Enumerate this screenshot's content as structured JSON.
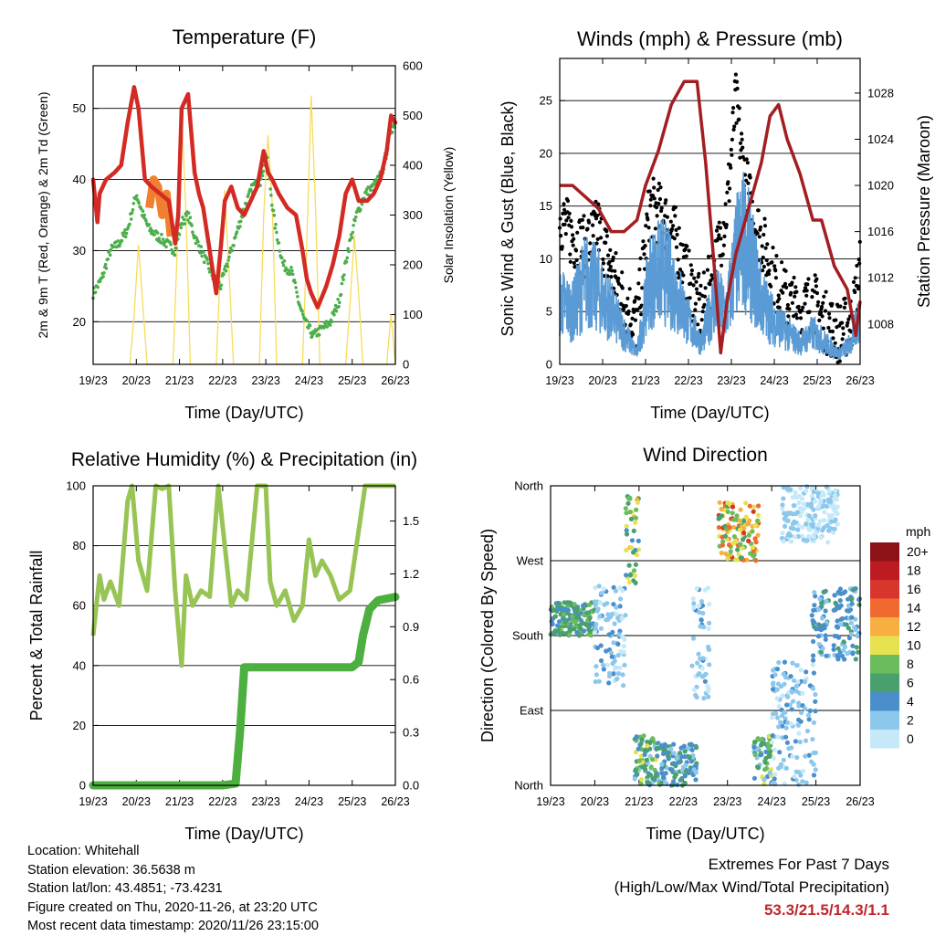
{
  "time_ticks": [
    "19/23",
    "20/23",
    "21/23",
    "22/23",
    "23/23",
    "24/23",
    "25/23",
    "26/23"
  ],
  "wind_speed_colors": [
    "#c6e9f9",
    "#8cc7ec",
    "#4a8fcc",
    "#49a06e",
    "#6bbd5c",
    "#e6e24f",
    "#f8af42",
    "#f06a30",
    "#d8352c",
    "#bd1b22",
    "#8c1217"
  ],
  "chart_data": [
    {
      "type": "line",
      "title": "Temperature (F)",
      "xlabel": "Time (Day/UTC)",
      "ylabel": "2m & 9m T (Red, Orange) & 2m Td (Green)",
      "y2label": "Solar Insolation (Yellow)",
      "x_domain_days": [
        0,
        7
      ],
      "ylim": [
        14,
        56
      ],
      "y_ticks": [
        20,
        30,
        40,
        50
      ],
      "y2lim": [
        0,
        600
      ],
      "y2_ticks": [
        0,
        100,
        200,
        300,
        400,
        500,
        600
      ],
      "grid": true,
      "series": [
        {
          "color": "#d42a24",
          "x": [
            0,
            0.1,
            0.15,
            0.3,
            0.5,
            0.65,
            0.8,
            0.95,
            1.05,
            1.2,
            1.35,
            1.55,
            1.75,
            1.9,
            1.97,
            2.05,
            2.2,
            2.35,
            2.45,
            2.55,
            2.65,
            2.85,
            2.95,
            3.05,
            3.2,
            3.35,
            3.5,
            3.65,
            3.8,
            3.95,
            4.05,
            4.15,
            4.3,
            4.5,
            4.7,
            4.85,
            4.95,
            5.05,
            5.2,
            5.4,
            5.55,
            5.7,
            5.85,
            6,
            6.15,
            6.35,
            6.5,
            6.65,
            6.8,
            6.9,
            7
          ],
          "y": [
            40,
            34,
            38,
            40,
            41,
            42,
            48,
            53,
            50,
            40,
            39,
            38,
            37,
            31,
            35,
            50,
            52,
            41,
            38,
            36,
            32,
            24,
            30,
            37,
            39,
            36,
            35,
            37,
            39,
            44,
            41,
            40,
            38,
            36,
            35,
            30,
            26,
            24,
            22,
            25,
            28,
            32,
            38,
            40,
            37,
            37,
            38,
            40,
            44,
            49,
            48
          ]
        },
        {
          "color": "#f08030",
          "x": [
            1.3,
            1.4,
            1.5,
            1.6,
            1.7,
            1.8
          ],
          "y": [
            36,
            40,
            39,
            35,
            38,
            32
          ]
        },
        {
          "color": "#4cae4c",
          "x": [
            0,
            0.2,
            0.4,
            0.6,
            0.8,
            1.0,
            1.15,
            1.3,
            1.5,
            1.7,
            1.9,
            2.05,
            2.2,
            2.35,
            2.5,
            2.65,
            2.8,
            2.95,
            3.1,
            3.3,
            3.5,
            3.7,
            3.9,
            4.0,
            4.2,
            4.4,
            4.6,
            4.75,
            4.9,
            5.1,
            5.3,
            5.5,
            5.7,
            5.9,
            6.1,
            6.3,
            6.5,
            6.7,
            6.9,
            7
          ],
          "y": [
            24,
            26,
            30,
            31,
            33,
            38,
            35,
            33,
            32,
            31,
            30,
            34,
            35,
            32,
            30,
            28,
            26,
            25,
            28,
            32,
            36,
            39,
            40,
            44,
            34,
            28,
            27,
            23,
            20,
            18,
            19,
            20,
            23,
            30,
            35,
            38,
            39,
            41,
            47,
            48
          ]
        },
        {
          "color": "#f7dc59",
          "axis": "y2",
          "x": [
            0.85,
            0.95,
            1.05,
            1.15,
            1.25,
            1.85,
            1.95,
            2.05,
            2.15,
            2.25,
            2.85,
            2.95,
            3.05,
            3.15,
            3.25,
            3.85,
            3.95,
            4.05,
            4.15,
            4.25,
            4.85,
            4.95,
            5.05,
            5.15,
            5.25,
            5.85,
            5.95,
            6.05,
            6.15,
            6.25,
            6.8,
            6.9,
            7.0
          ],
          "y": [
            0,
            100,
            240,
            120,
            0,
            0,
            240,
            510,
            300,
            0,
            0,
            200,
            350,
            180,
            0,
            0,
            300,
            460,
            320,
            0,
            0,
            250,
            540,
            320,
            0,
            0,
            120,
            260,
            140,
            0,
            0,
            100,
            0
          ]
        }
      ]
    },
    {
      "type": "scatter",
      "title": "Winds (mph) & Pressure (mb)",
      "xlabel": "Time (Day/UTC)",
      "ylabel": "Sonic Wind & Gust (Blue, Black)",
      "y2label": "Station Pressure (Maroon)",
      "x_domain_days": [
        0,
        7
      ],
      "ylim": [
        0,
        29
      ],
      "y_ticks": [
        0,
        5,
        10,
        15,
        20,
        25
      ],
      "y2lim": [
        1004.5,
        1031
      ],
      "y2_ticks": [
        1008,
        1012,
        1016,
        1020,
        1024,
        1028
      ],
      "grid": true,
      "series": [
        {
          "color": "#5a9bd5",
          "x": [
            0,
            0.3,
            0.6,
            0.9,
            1.2,
            1.5,
            1.8,
            2.1,
            2.4,
            2.7,
            3.0,
            3.3,
            3.6,
            3.9,
            4.1,
            4.3,
            4.5,
            4.7,
            5.0,
            5.3,
            5.6,
            5.9,
            6.2,
            6.5,
            6.8,
            7
          ],
          "y": [
            6,
            5,
            8,
            7,
            5,
            3,
            1,
            8,
            9,
            7,
            4,
            2,
            6,
            5,
            10,
            12,
            9,
            6,
            4,
            3,
            2,
            3,
            2,
            1,
            2,
            5
          ]
        },
        {
          "color": "#000000",
          "x": [
            0,
            0.3,
            0.6,
            0.9,
            1.2,
            1.5,
            1.8,
            2.1,
            2.4,
            2.7,
            3.0,
            3.3,
            3.6,
            3.9,
            4.1,
            4.3,
            4.5,
            4.7,
            5.0,
            5.3,
            5.6,
            5.9,
            6.2,
            6.5,
            6.8,
            7
          ],
          "y": [
            14,
            12,
            11,
            13,
            9,
            6,
            4,
            15,
            14,
            12,
            8,
            5,
            9,
            15,
            25,
            18,
            14,
            12,
            8,
            6,
            5,
            6,
            4,
            3,
            4,
            9
          ]
        },
        {
          "color": "#a31e22",
          "axis": "y2",
          "x": [
            0,
            0.3,
            0.6,
            0.9,
            1.2,
            1.5,
            1.8,
            2.0,
            2.3,
            2.6,
            2.9,
            3.2,
            3.4,
            3.6,
            3.75,
            3.9,
            4.1,
            4.4,
            4.7,
            4.9,
            5.1,
            5.3,
            5.6,
            5.9,
            6.1,
            6.4,
            6.7,
            6.9,
            7
          ],
          "y": [
            1020,
            1020,
            1019,
            1018,
            1016,
            1016,
            1017,
            1020,
            1023,
            1027,
            1029,
            1029,
            1022,
            1013,
            1005.5,
            1010,
            1014,
            1018,
            1022,
            1026,
            1027,
            1024,
            1021,
            1017,
            1017,
            1013,
            1011,
            1007,
            1010
          ]
        }
      ]
    },
    {
      "type": "line",
      "title": "Relative Humidity (%) & Precipitation (in)",
      "xlabel": "Time (Day/UTC)",
      "ylabel": "Percent & Total Rainfall",
      "x_domain_days": [
        0,
        7
      ],
      "ylim": [
        0,
        100
      ],
      "y_ticks": [
        0,
        20,
        40,
        60,
        80,
        100
      ],
      "y2lim": [
        0,
        1.7
      ],
      "y2_ticks": [
        "0.0",
        "0.3",
        "0.6",
        "0.9",
        "1.2",
        "1.5"
      ],
      "grid": true,
      "series": [
        {
          "color": "#97c454",
          "x": [
            0,
            0.15,
            0.25,
            0.4,
            0.6,
            0.8,
            0.9,
            1.05,
            1.25,
            1.45,
            1.6,
            1.75,
            1.9,
            2.05,
            2.15,
            2.3,
            2.5,
            2.7,
            2.9,
            3.05,
            3.2,
            3.35,
            3.55,
            3.8,
            3.9,
            4.0,
            4.1,
            4.25,
            4.45,
            4.65,
            4.85,
            5.0,
            5.15,
            5.3,
            5.5,
            5.7,
            5.95,
            6.1,
            6.3,
            6.5,
            6.7,
            7
          ],
          "y": [
            50,
            70,
            62,
            68,
            60,
            95,
            100,
            75,
            65,
            100,
            99,
            100,
            65,
            40,
            70,
            60,
            65,
            63,
            100,
            80,
            60,
            65,
            62,
            100,
            100,
            100,
            68,
            60,
            65,
            55,
            60,
            82,
            70,
            75,
            70,
            62,
            65,
            80,
            100,
            100,
            100,
            100
          ]
        },
        {
          "color": "#4caf3f",
          "axis": "y2",
          "x": [
            0,
            1,
            2,
            3,
            3.3,
            3.4,
            3.5,
            4,
            5,
            6,
            6.15,
            6.25,
            6.4,
            6.6,
            7
          ],
          "y": [
            0,
            0,
            0,
            0,
            0.01,
            0.3,
            0.67,
            0.67,
            0.67,
            0.67,
            0.7,
            0.85,
            1.0,
            1.05,
            1.07
          ]
        }
      ]
    },
    {
      "type": "scatter",
      "title": "Wind Direction",
      "xlabel": "Time (Day/UTC)",
      "ylabel": "Direction (Colored By Speed)",
      "x_domain_days": [
        0,
        7
      ],
      "y_ticks": [
        "North",
        "East",
        "South",
        "West",
        "North"
      ],
      "ylim_deg": [
        0,
        360
      ],
      "grid": true,
      "legend": {
        "title": "mph",
        "labels": [
          "20+",
          "18",
          "16",
          "14",
          "12",
          "10",
          "8",
          "6",
          "4",
          "2",
          "0"
        ],
        "placement": "right"
      },
      "clusters": [
        {
          "x": [
            0,
            1.0
          ],
          "y": [
            180,
            220
          ],
          "speed": [
            4,
            8
          ]
        },
        {
          "x": [
            1.0,
            1.7
          ],
          "y": [
            120,
            240
          ],
          "speed": [
            0,
            4
          ]
        },
        {
          "x": [
            1.7,
            2.0
          ],
          "y": [
            240,
            350
          ],
          "speed": [
            4,
            12
          ]
        },
        {
          "x": [
            1.9,
            2.5
          ],
          "y": [
            0,
            60
          ],
          "speed": [
            2,
            10
          ]
        },
        {
          "x": [
            2.5,
            3.3
          ],
          "y": [
            0,
            50
          ],
          "speed": [
            2,
            6
          ]
        },
        {
          "x": [
            3.2,
            3.6
          ],
          "y": [
            100,
            240
          ],
          "speed": [
            0,
            4
          ]
        },
        {
          "x": [
            3.8,
            4.7
          ],
          "y": [
            270,
            340
          ],
          "speed": [
            6,
            16
          ]
        },
        {
          "x": [
            4.6,
            5.0
          ],
          "y": [
            0,
            60
          ],
          "speed": [
            2,
            10
          ]
        },
        {
          "x": [
            5.0,
            6.0
          ],
          "y": [
            0,
            150
          ],
          "speed": [
            0,
            4
          ]
        },
        {
          "x": [
            5.9,
            6.3
          ],
          "y": [
            150,
            240
          ],
          "speed": [
            2,
            6
          ]
        },
        {
          "x": [
            5.2,
            6.5
          ],
          "y": [
            290,
            360
          ],
          "speed": [
            0,
            2
          ]
        },
        {
          "x": [
            6.4,
            7.0
          ],
          "y": [
            150,
            240
          ],
          "speed": [
            2,
            6
          ]
        }
      ]
    }
  ],
  "info": {
    "location": "Location: Whitehall",
    "elevation": "Station elevation: 36.5638 m",
    "latlon": "Station lat/lon: 43.4851; -73.4231",
    "created": "Figure created on Thu, 2020-11-26, at 23:20 UTC",
    "recent": "Most recent data timestamp: 2020/11/26 23:15:00"
  },
  "extremes": {
    "title": "Extremes For Past 7 Days",
    "subtitle": "(High/Low/Max Wind/Total Precipitation)",
    "values": "53.3/21.5/14.3/1.1"
  }
}
